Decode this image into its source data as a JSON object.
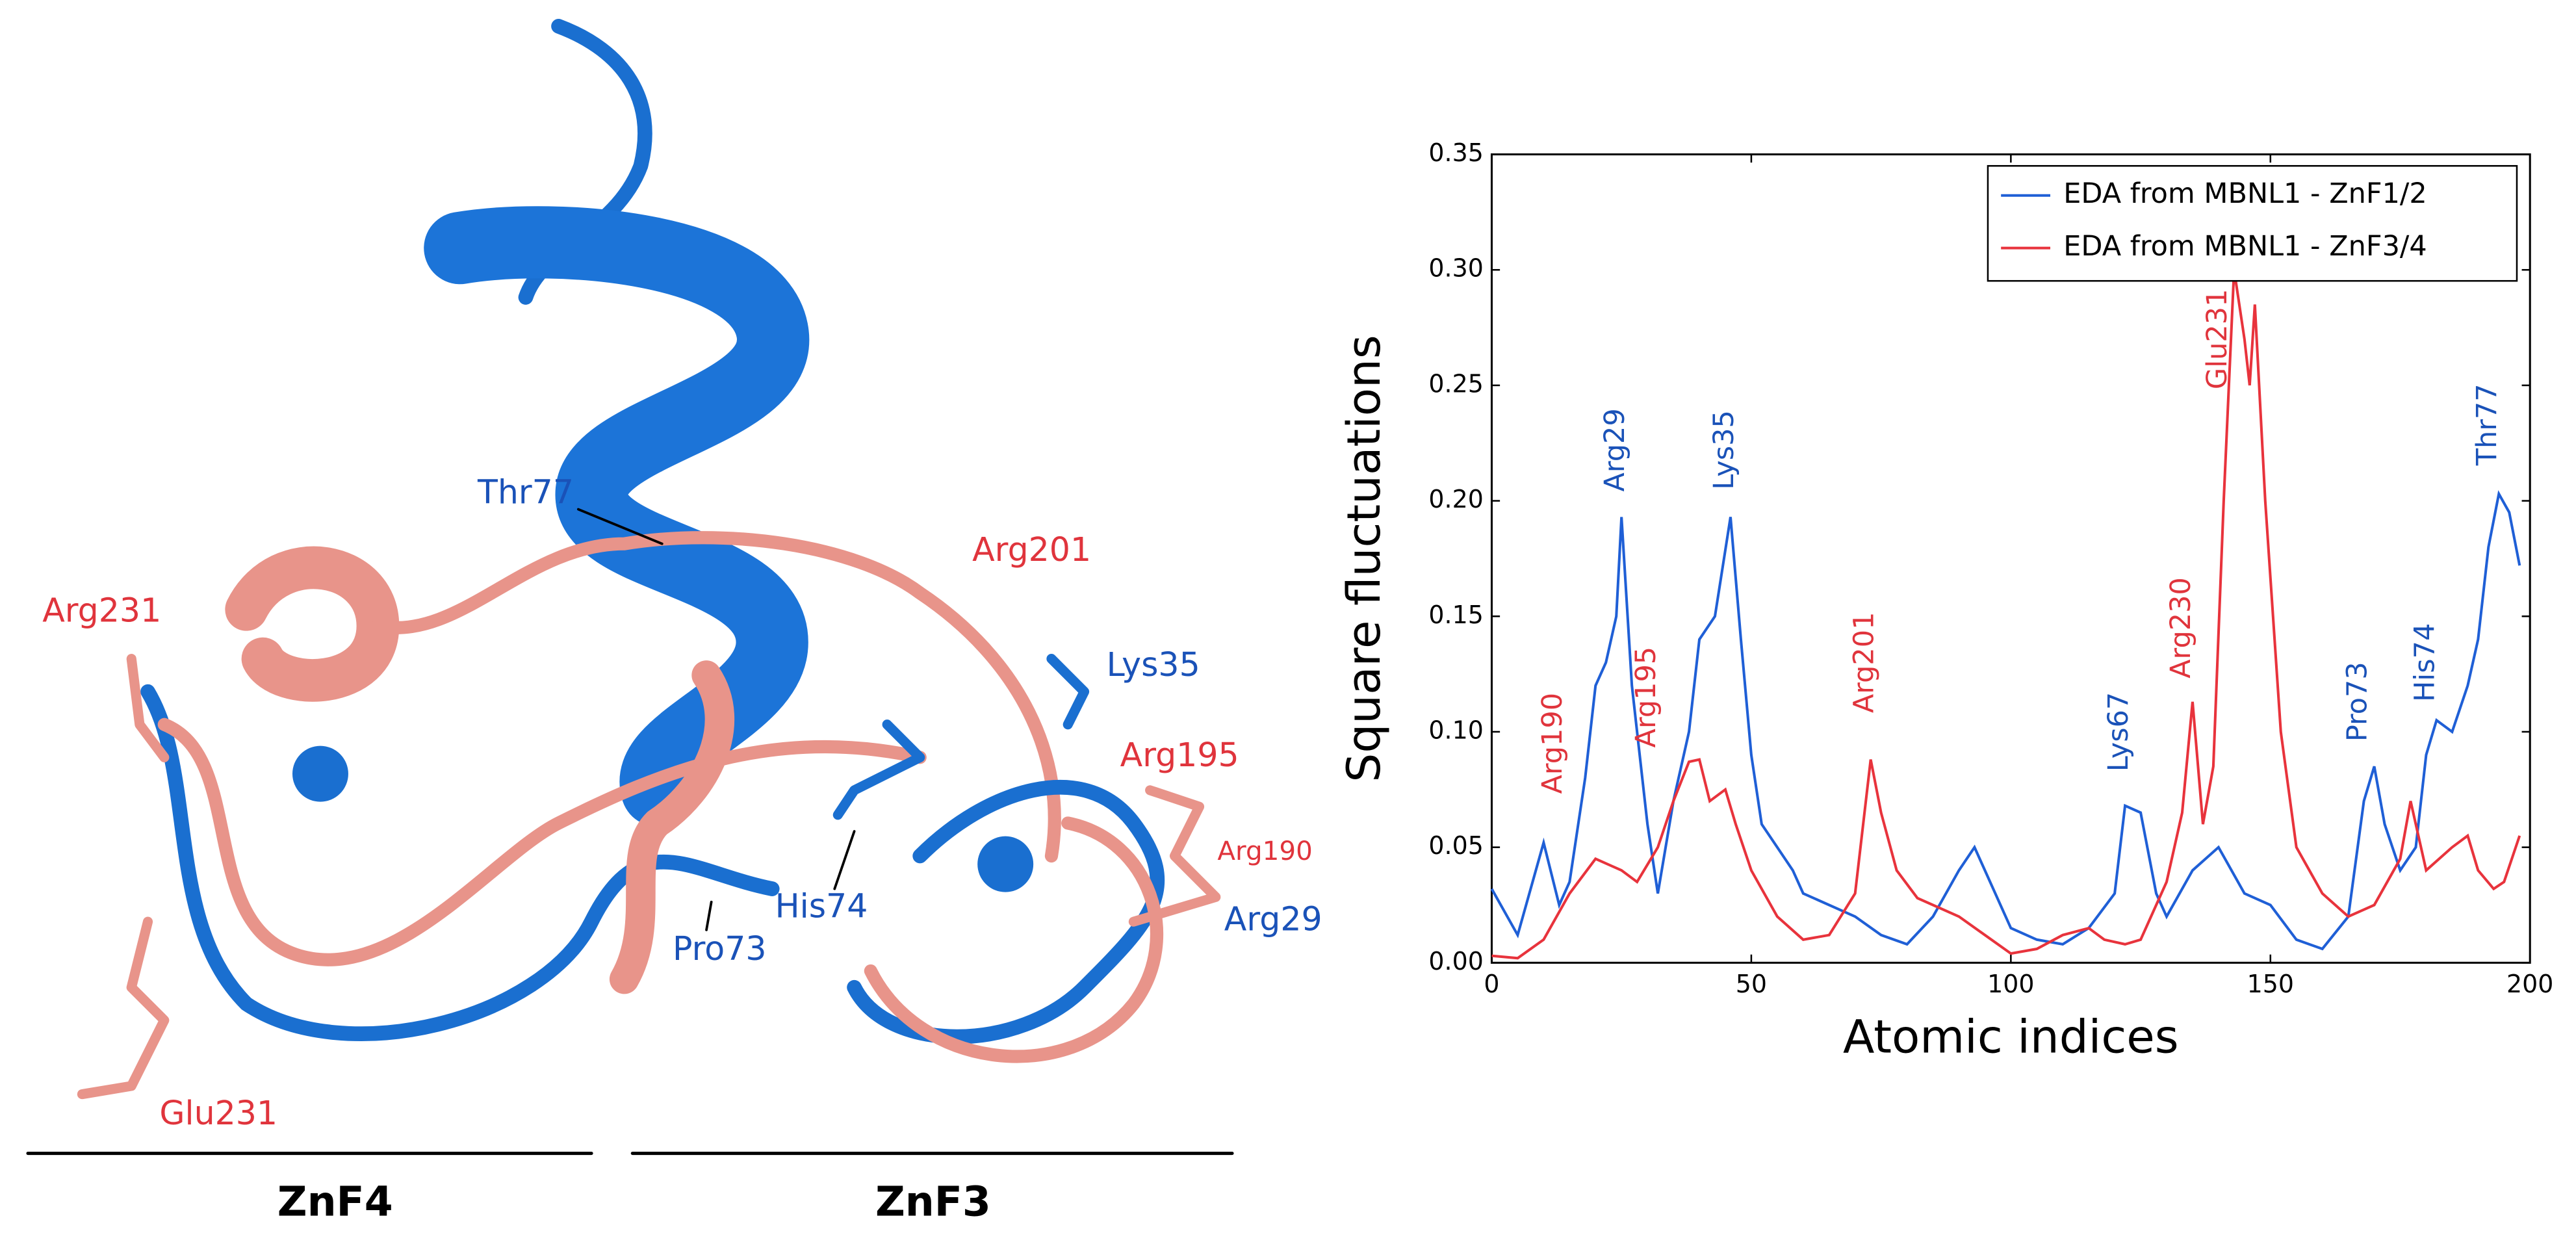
{
  "structure": {
    "labels": [
      {
        "text": "Thr77",
        "color": "#1a52b8"
      },
      {
        "text": "Arg201",
        "color": "#e0343c"
      },
      {
        "text": "Arg231",
        "color": "#e0343c"
      },
      {
        "text": "Lys35",
        "color": "#1a52b8"
      },
      {
        "text": "Arg195",
        "color": "#e0343c"
      },
      {
        "text": "Arg190",
        "color": "#e0343c"
      },
      {
        "text": "His74",
        "color": "#1a52b8"
      },
      {
        "text": "Arg29",
        "color": "#1a52b8"
      },
      {
        "text": "Pro73",
        "color": "#1a52b8"
      },
      {
        "text": "Glu231",
        "color": "#e0343c"
      }
    ],
    "domains": [
      "ZnF4",
      "ZnF3"
    ]
  },
  "chart_data": {
    "type": "line",
    "xlabel": "Atomic indices",
    "ylabel": "Square fluctuations",
    "xlim": [
      0,
      200
    ],
    "ylim": [
      0,
      0.35
    ],
    "xticks": [
      0,
      50,
      100,
      150,
      200
    ],
    "yticks": [
      {
        "value": 0,
        "label": "0.00"
      },
      {
        "value": 0.05,
        "label": "0.05"
      },
      {
        "value": 0.1,
        "label": "0.10"
      },
      {
        "value": 0.15,
        "label": "0.15"
      },
      {
        "value": 0.2,
        "label": "0.20"
      },
      {
        "value": 0.25,
        "label": "0.25"
      },
      {
        "value": 0.3,
        "label": "0.30"
      },
      {
        "value": 0.35,
        "label": "0.35"
      }
    ],
    "legend": "upper right",
    "series": [
      {
        "name": "EDA from MBNL1 - ZnF1/2",
        "color": "#1f5fd6",
        "x": [
          0,
          5,
          10,
          13,
          15,
          18,
          20,
          22,
          24,
          25,
          27,
          30,
          32,
          35,
          38,
          40,
          43,
          46,
          48,
          50,
          52,
          55,
          58,
          60,
          65,
          70,
          75,
          80,
          85,
          90,
          93,
          97,
          100,
          105,
          110,
          115,
          120,
          122,
          125,
          128,
          130,
          135,
          140,
          145,
          150,
          155,
          160,
          165,
          168,
          170,
          172,
          175,
          178,
          180,
          182,
          185,
          188,
          190,
          192,
          194,
          196,
          198
        ],
        "values": [
          0.032,
          0.012,
          0.052,
          0.025,
          0.035,
          0.08,
          0.12,
          0.13,
          0.15,
          0.193,
          0.12,
          0.06,
          0.03,
          0.07,
          0.1,
          0.14,
          0.15,
          0.193,
          0.14,
          0.09,
          0.06,
          0.05,
          0.04,
          0.03,
          0.025,
          0.02,
          0.012,
          0.008,
          0.02,
          0.04,
          0.05,
          0.03,
          0.015,
          0.01,
          0.008,
          0.015,
          0.03,
          0.068,
          0.065,
          0.03,
          0.02,
          0.04,
          0.05,
          0.03,
          0.025,
          0.01,
          0.006,
          0.02,
          0.07,
          0.085,
          0.06,
          0.04,
          0.05,
          0.09,
          0.105,
          0.1,
          0.12,
          0.14,
          0.18,
          0.203,
          0.195,
          0.172
        ]
      },
      {
        "name": "EDA from MBNL1 - ZnF3/4",
        "color": "#e8333c",
        "x": [
          0,
          5,
          10,
          15,
          20,
          23,
          25,
          28,
          32,
          35,
          38,
          40,
          42,
          45,
          47,
          50,
          55,
          60,
          65,
          70,
          73,
          75,
          78,
          82,
          85,
          90,
          95,
          100,
          105,
          110,
          115,
          118,
          122,
          125,
          130,
          133,
          135,
          137,
          139,
          141,
          143,
          145,
          146,
          147,
          149,
          152,
          155,
          160,
          165,
          170,
          175,
          177,
          180,
          185,
          188,
          190,
          193,
          195,
          198
        ],
        "values": [
          0.003,
          0.002,
          0.01,
          0.03,
          0.045,
          0.042,
          0.04,
          0.035,
          0.05,
          0.07,
          0.087,
          0.088,
          0.07,
          0.075,
          0.06,
          0.04,
          0.02,
          0.01,
          0.012,
          0.03,
          0.088,
          0.065,
          0.04,
          0.028,
          0.025,
          0.02,
          0.012,
          0.004,
          0.006,
          0.012,
          0.015,
          0.01,
          0.008,
          0.01,
          0.035,
          0.065,
          0.113,
          0.06,
          0.085,
          0.2,
          0.3,
          0.27,
          0.25,
          0.285,
          0.2,
          0.1,
          0.05,
          0.03,
          0.02,
          0.025,
          0.045,
          0.07,
          0.04,
          0.05,
          0.055,
          0.04,
          0.032,
          0.035,
          0.055
        ]
      }
    ],
    "annotations": [
      {
        "text": "Arg29",
        "color": "#1a52b8"
      },
      {
        "text": "Lys35",
        "color": "#1a52b8"
      },
      {
        "text": "Arg190",
        "color": "#e0343c"
      },
      {
        "text": "Arg195",
        "color": "#e0343c"
      },
      {
        "text": "Arg201",
        "color": "#e0343c"
      },
      {
        "text": "Lys67",
        "color": "#1a52b8"
      },
      {
        "text": "Arg230",
        "color": "#e0343c"
      },
      {
        "text": "Glu231",
        "color": "#e0343c"
      },
      {
        "text": "Pro73",
        "color": "#1a52b8"
      },
      {
        "text": "His74",
        "color": "#1a52b8"
      },
      {
        "text": "Thr77",
        "color": "#1a52b8"
      }
    ]
  }
}
